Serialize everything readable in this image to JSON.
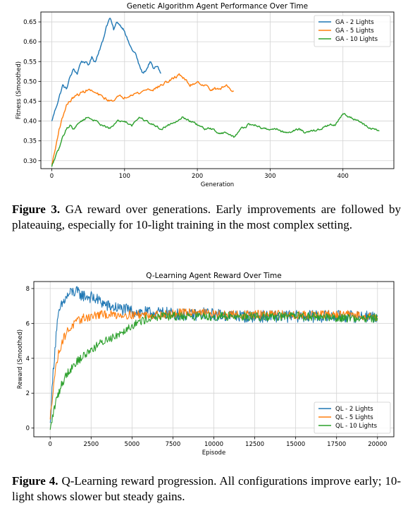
{
  "figures": [
    {
      "caption_label": "Figure 3.",
      "caption_text": "GA reward over generations. Early improvements are followed by plateauing, especially for 10-light training in the most complex setting."
    },
    {
      "caption_label": "Figure 4.",
      "caption_text": "Q-Learning reward progression. All configurations improve early; 10-light shows slower but steady gains."
    }
  ],
  "chart_data": [
    {
      "type": "line",
      "title": "Genetic Algorithm Agent Performance Over Time",
      "xlabel": "Generation",
      "ylabel": "Fitness (Smoothed)",
      "xlim": [
        -15,
        470
      ],
      "ylim": [
        0.28,
        0.675
      ],
      "xticks": [
        0,
        100,
        200,
        300,
        400
      ],
      "yticks": [
        0.3,
        0.35,
        0.4,
        0.45,
        0.5,
        0.55,
        0.6,
        0.65
      ],
      "ytick_decimals": 2,
      "grid": true,
      "legend": "top-right",
      "series": [
        {
          "name": "GA - 2 Lights",
          "color": "#1f77b4",
          "x": [
            0,
            5,
            10,
            15,
            20,
            25,
            30,
            35,
            40,
            45,
            50,
            55,
            60,
            65,
            70,
            75,
            80,
            85,
            90,
            95,
            100,
            105,
            110,
            115,
            120,
            125,
            130,
            135,
            140,
            145,
            150
          ],
          "y": [
            0.4,
            0.43,
            0.46,
            0.49,
            0.48,
            0.51,
            0.53,
            0.52,
            0.55,
            0.55,
            0.54,
            0.56,
            0.55,
            0.58,
            0.6,
            0.64,
            0.66,
            0.63,
            0.65,
            0.64,
            0.63,
            0.6,
            0.58,
            0.57,
            0.54,
            0.52,
            0.53,
            0.55,
            0.53,
            0.54,
            0.52
          ],
          "noise": 0.004
        },
        {
          "name": "GA - 5 Lights",
          "color": "#ff7f0e",
          "x": [
            0,
            5,
            10,
            15,
            20,
            25,
            30,
            40,
            50,
            60,
            70,
            80,
            90,
            100,
            110,
            120,
            130,
            140,
            150,
            160,
            170,
            175,
            180,
            190,
            200,
            210,
            220,
            230,
            240,
            250
          ],
          "y": [
            0.29,
            0.33,
            0.38,
            0.41,
            0.44,
            0.45,
            0.46,
            0.47,
            0.48,
            0.47,
            0.46,
            0.45,
            0.46,
            0.46,
            0.47,
            0.47,
            0.48,
            0.48,
            0.49,
            0.5,
            0.51,
            0.52,
            0.51,
            0.49,
            0.5,
            0.49,
            0.48,
            0.48,
            0.49,
            0.475
          ],
          "noise": 0.004
        },
        {
          "name": "GA - 10 Lights",
          "color": "#2ca02c",
          "x": [
            0,
            5,
            10,
            15,
            20,
            25,
            30,
            40,
            50,
            60,
            70,
            80,
            90,
            100,
            110,
            120,
            130,
            140,
            150,
            160,
            170,
            180,
            190,
            200,
            210,
            220,
            230,
            240,
            250,
            260,
            270,
            280,
            290,
            300,
            310,
            320,
            330,
            340,
            350,
            360,
            370,
            380,
            390,
            400,
            410,
            420,
            430,
            440,
            450
          ],
          "y": [
            0.285,
            0.31,
            0.33,
            0.36,
            0.38,
            0.39,
            0.38,
            0.4,
            0.41,
            0.4,
            0.39,
            0.38,
            0.4,
            0.4,
            0.39,
            0.41,
            0.4,
            0.39,
            0.38,
            0.39,
            0.4,
            0.41,
            0.4,
            0.39,
            0.38,
            0.38,
            0.37,
            0.37,
            0.36,
            0.38,
            0.39,
            0.39,
            0.38,
            0.38,
            0.38,
            0.37,
            0.375,
            0.38,
            0.37,
            0.375,
            0.38,
            0.39,
            0.39,
            0.42,
            0.41,
            0.4,
            0.39,
            0.38,
            0.375
          ],
          "noise": 0.003
        }
      ]
    },
    {
      "type": "line",
      "title": "Q-Learning Agent Reward Over Time",
      "xlabel": "Episode",
      "ylabel": "Reward (Smoothed)",
      "xlim": [
        -1000,
        21000
      ],
      "ylim": [
        -0.5,
        8.4
      ],
      "xticks": [
        0,
        2500,
        5000,
        7500,
        10000,
        12500,
        15000,
        17500,
        20000
      ],
      "yticks": [
        0,
        2,
        4,
        6,
        8
      ],
      "ytick_decimals": 0,
      "grid": true,
      "legend": "bottom-right",
      "series": [
        {
          "name": "QL - 2 Lights",
          "color": "#1f77b4",
          "x": [
            0,
            200,
            400,
            600,
            800,
            1000,
            1300,
            1600,
            2000,
            2500,
            3000,
            3500,
            4000,
            5000,
            6000,
            7000,
            8000,
            9000,
            9500,
            10000,
            12000,
            14000,
            16000,
            18000,
            20000
          ],
          "y": [
            0.3,
            3.5,
            5.8,
            6.8,
            7.2,
            7.5,
            7.8,
            7.8,
            7.6,
            7.5,
            7.3,
            7.0,
            6.9,
            6.7,
            6.6,
            6.6,
            6.5,
            6.5,
            6.6,
            6.5,
            6.4,
            6.4,
            6.4,
            6.4,
            6.4
          ],
          "noise": 0.35
        },
        {
          "name": "QL - 5 Lights",
          "color": "#ff7f0e",
          "x": [
            0,
            200,
            400,
            600,
            800,
            1000,
            1500,
            2000,
            2500,
            3000,
            4000,
            5000,
            6000,
            7000,
            8000,
            9000,
            10000,
            12000,
            14000,
            16000,
            18000,
            20000
          ],
          "y": [
            0.5,
            2.5,
            3.8,
            4.6,
            5.1,
            5.5,
            6.0,
            6.3,
            6.4,
            6.5,
            6.5,
            6.5,
            6.5,
            6.5,
            6.6,
            6.7,
            6.5,
            6.5,
            6.5,
            6.5,
            6.5,
            6.4
          ],
          "noise": 0.25
        },
        {
          "name": "QL - 10 Lights",
          "color": "#2ca02c",
          "x": [
            0,
            200,
            400,
            700,
            1000,
            1500,
            2000,
            2500,
            3000,
            3500,
            4000,
            4500,
            5000,
            5500,
            6000,
            7000,
            8000,
            9000,
            10000,
            12000,
            14000,
            16000,
            18000,
            20000
          ],
          "y": [
            -0.1,
            0.9,
            1.7,
            2.5,
            3.1,
            3.7,
            4.1,
            4.5,
            4.8,
            5.1,
            5.3,
            5.6,
            5.9,
            6.1,
            6.3,
            6.4,
            6.4,
            6.4,
            6.4,
            6.4,
            6.4,
            6.4,
            6.3,
            6.3
          ],
          "noise": 0.25
        }
      ]
    }
  ]
}
